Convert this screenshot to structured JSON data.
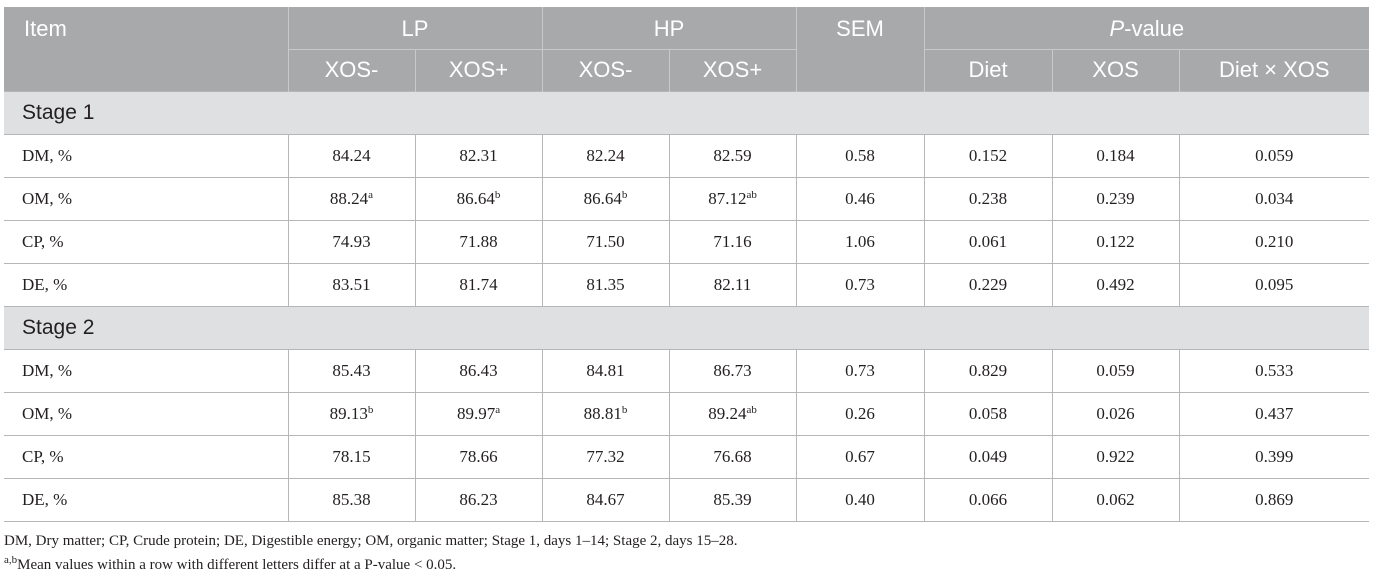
{
  "header": {
    "item": "Item",
    "groups": [
      "LP",
      "HP"
    ],
    "sem": "SEM",
    "pvalue_italic": "P",
    "pvalue_rest": "-value",
    "subcols": [
      "XOS-",
      "XOS+",
      "XOS-",
      "XOS+"
    ],
    "pcols": [
      "Diet",
      "XOS",
      "Diet × XOS"
    ]
  },
  "stages": [
    {
      "label": "Stage 1",
      "rows": [
        {
          "item": "DM, %",
          "cells": [
            {
              "v": "84.24",
              "s": ""
            },
            {
              "v": "82.31",
              "s": ""
            },
            {
              "v": "82.24",
              "s": ""
            },
            {
              "v": "82.59",
              "s": ""
            }
          ],
          "sem": "0.58",
          "p": [
            "0.152",
            "0.184",
            "0.059"
          ]
        },
        {
          "item": "OM, %",
          "cells": [
            {
              "v": "88.24",
              "s": "a"
            },
            {
              "v": "86.64",
              "s": "b"
            },
            {
              "v": "86.64",
              "s": "b"
            },
            {
              "v": "87.12",
              "s": "ab"
            }
          ],
          "sem": "0.46",
          "p": [
            "0.238",
            "0.239",
            "0.034"
          ]
        },
        {
          "item": "CP, %",
          "cells": [
            {
              "v": "74.93",
              "s": ""
            },
            {
              "v": "71.88",
              "s": ""
            },
            {
              "v": "71.50",
              "s": ""
            },
            {
              "v": "71.16",
              "s": ""
            }
          ],
          "sem": "1.06",
          "p": [
            "0.061",
            "0.122",
            "0.210"
          ]
        },
        {
          "item": "DE, %",
          "cells": [
            {
              "v": "83.51",
              "s": ""
            },
            {
              "v": "81.74",
              "s": ""
            },
            {
              "v": "81.35",
              "s": ""
            },
            {
              "v": "82.11",
              "s": ""
            }
          ],
          "sem": "0.73",
          "p": [
            "0.229",
            "0.492",
            "0.095"
          ]
        }
      ]
    },
    {
      "label": "Stage 2",
      "rows": [
        {
          "item": "DM, %",
          "cells": [
            {
              "v": "85.43",
              "s": ""
            },
            {
              "v": "86.43",
              "s": ""
            },
            {
              "v": "84.81",
              "s": ""
            },
            {
              "v": "86.73",
              "s": ""
            }
          ],
          "sem": "0.73",
          "p": [
            "0.829",
            "0.059",
            "0.533"
          ]
        },
        {
          "item": "OM, %",
          "cells": [
            {
              "v": "89.13",
              "s": "b"
            },
            {
              "v": "89.97",
              "s": "a"
            },
            {
              "v": "88.81",
              "s": "b"
            },
            {
              "v": "89.24",
              "s": "ab"
            }
          ],
          "sem": "0.26",
          "p": [
            "0.058",
            "0.026",
            "0.437"
          ]
        },
        {
          "item": "CP, %",
          "cells": [
            {
              "v": "78.15",
              "s": ""
            },
            {
              "v": "78.66",
              "s": ""
            },
            {
              "v": "77.32",
              "s": ""
            },
            {
              "v": "76.68",
              "s": ""
            }
          ],
          "sem": "0.67",
          "p": [
            "0.049",
            "0.922",
            "0.399"
          ]
        },
        {
          "item": "DE, %",
          "cells": [
            {
              "v": "85.38",
              "s": ""
            },
            {
              "v": "86.23",
              "s": ""
            },
            {
              "v": "84.67",
              "s": ""
            },
            {
              "v": "85.39",
              "s": ""
            }
          ],
          "sem": "0.40",
          "p": [
            "0.066",
            "0.062",
            "0.869"
          ]
        }
      ]
    }
  ],
  "footnotes": {
    "abbrev": "DM, Dry matter; CP, Crude protein; DE, Digestible energy; OM, organic matter; Stage 1, days 1–14; Stage 2, days 15–28.",
    "sig_sup": "a,b",
    "sig_text": "Mean values within a row with different letters differ at a P-value < 0.05."
  },
  "colors": {
    "header_bg": "#a7a9ab",
    "stage_bg": "#dfe0e1",
    "text": "#231f20"
  }
}
